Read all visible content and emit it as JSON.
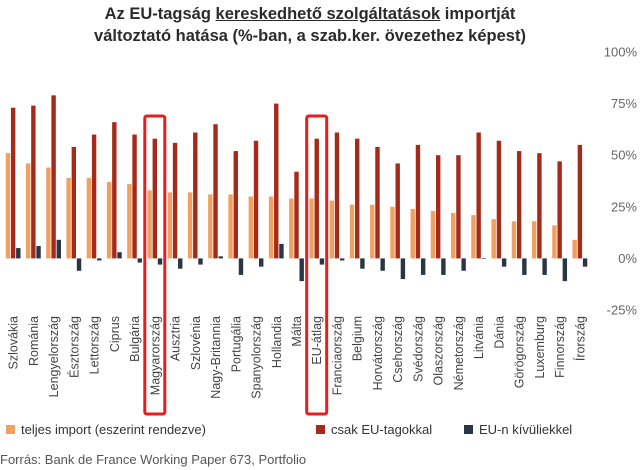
{
  "title": {
    "line1_before": "Az EU-tagság ",
    "line1_underlined": "kereskedhető szolgáltatások",
    "line1_after": " importját",
    "line2": "változtató hatása (%-ban, a szab.ker. övezethez képest)"
  },
  "source": "Forrás: Bank de France Working Paper 673, Portfolio",
  "colors": {
    "series1": "#f0a060",
    "series2": "#a52a1a",
    "series3": "#2b3545",
    "highlight": "#e61e1e"
  },
  "chart_data": {
    "type": "bar",
    "categories": [
      "Szlovákia",
      "Románia",
      "Lengyelország",
      "Észtország",
      "Lettország",
      "Ciprus",
      "Bulgária",
      "Magyarország",
      "Ausztria",
      "Szlovénia",
      "Nagy-Britannia",
      "Portugália",
      "Spanyolország",
      "Hollandia",
      "Málta",
      "EU-átlag",
      "Franciaország",
      "Belgium",
      "Horvátország",
      "Csehország",
      "Svédország",
      "Olaszország",
      "Németország",
      "Litvánia",
      "Dánia",
      "Görögország",
      "Luxemburg",
      "Finnország",
      "Írország"
    ],
    "series": [
      {
        "name": "teljes import (eszerint rendezve)",
        "values": [
          51,
          46,
          44,
          39,
          39,
          37,
          36,
          33,
          32,
          32,
          31,
          31,
          30,
          30,
          29,
          29,
          28,
          26,
          26,
          25,
          24,
          23,
          22,
          21,
          19,
          18,
          18,
          16,
          9
        ]
      },
      {
        "name": "csak EU-tagokkal",
        "values": [
          73,
          74,
          79,
          54,
          60,
          66,
          60,
          58,
          56,
          61,
          65,
          52,
          57,
          75,
          42,
          58,
          61,
          58,
          54,
          46,
          55,
          50,
          50,
          61,
          57,
          52,
          51,
          47,
          55
        ]
      },
      {
        "name": "EU-n kívüliekkel",
        "values": [
          5,
          6,
          9,
          -6,
          -1,
          3,
          -2,
          -3,
          -5,
          -3,
          1,
          -8,
          -4,
          7,
          -11,
          -3,
          -1,
          -5,
          -6,
          -10,
          -8,
          -8,
          -6,
          0,
          -4,
          -8,
          -8,
          -11,
          -4
        ]
      }
    ],
    "highlighted_categories": [
      "Magyarország",
      "EU-átlag"
    ],
    "ylim": [
      -25,
      100
    ],
    "yticks": [
      "-25%",
      "0%",
      "25%",
      "50%",
      "75%",
      "100%"
    ],
    "ytick_values": [
      -25,
      0,
      25,
      50,
      75,
      100
    ],
    "grid": false,
    "legend_position": "bottom"
  }
}
